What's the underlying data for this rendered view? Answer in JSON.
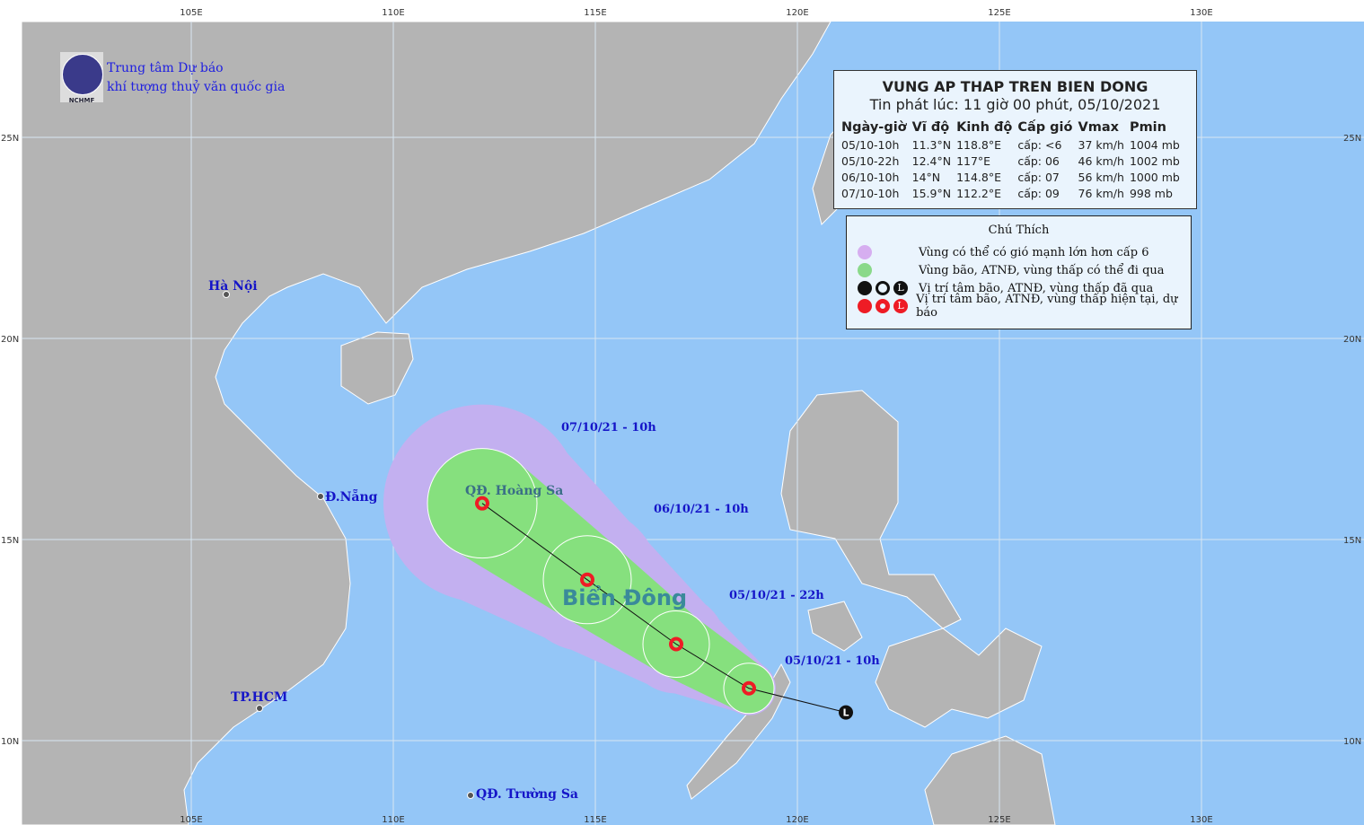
{
  "header": {
    "org_line1": "Trung tâm Dự báo",
    "org_line2": "khí tượng thuỷ văn quốc gia",
    "logo_text": "NCHMF"
  },
  "axes": {
    "lon_ticks": [
      "105E",
      "110E",
      "115E",
      "120E",
      "125E",
      "130E"
    ],
    "lat_ticks": [
      "25N",
      "20N",
      "15N",
      "10N"
    ]
  },
  "info": {
    "title": "VUNG AP THAP TREN BIEN DONG",
    "issued": "Tin phát lúc: 11 giờ 00 phút, 05/10/2021",
    "columns": [
      "Ngày-giờ",
      "Vĩ độ",
      "Kinh độ",
      "Cấp gió",
      "Vmax",
      "Pmin"
    ],
    "rows": [
      [
        "05/10-10h",
        "11.3°N",
        "118.8°E",
        "cấp: <6",
        "37 km/h",
        "1004 mb"
      ],
      [
        "05/10-22h",
        "12.4°N",
        "117°E",
        "cấp: 06",
        "46 km/h",
        "1002 mb"
      ],
      [
        "06/10-10h",
        "14°N",
        "114.8°E",
        "cấp: 07",
        "56 km/h",
        "1000 mb"
      ],
      [
        "07/10-10h",
        "15.9°N",
        "112.2°E",
        "cấp: 09",
        "76 km/h",
        "998 mb"
      ]
    ]
  },
  "legend": {
    "title": "Chú Thích",
    "items": [
      "Vùng có thể có gió mạnh lớn hơn cấp 6",
      "Vùng bão, ATNĐ, vùng thấp có thể đi qua",
      "Vị trí tâm bão, ATNĐ, vùng thấp đã qua",
      "Vị trí tâm bão, ATNĐ, vùng thấp hiện tại, dự báo"
    ]
  },
  "places": {
    "hanoi": "Hà Nội",
    "danang": "Đ.Nẵng",
    "hcm": "TP.HCM",
    "hoangsa": "QĐ. Hoàng Sa",
    "truongsa": "QĐ. Trường Sa",
    "biendong": "Biển Đông"
  },
  "track": {
    "past": {
      "lon": 121.2,
      "lat": 10.7,
      "symbol": "L"
    },
    "forecast": [
      {
        "label": "05/10/21 - 10h",
        "lon": 118.8,
        "lat": 11.3
      },
      {
        "label": "05/10/21 - 22h",
        "lon": 117,
        "lat": 12.4
      },
      {
        "label": "06/10/21 - 10h",
        "lon": 114.8,
        "lat": 14
      },
      {
        "label": "07/10/21 - 10h",
        "lon": 112.2,
        "lat": 15.9
      }
    ]
  },
  "colors": {
    "sea": "#94c6f7",
    "land": "#b4b4b4",
    "purple": "#c3b0f0",
    "green": "#86e07e",
    "red": "#ee1c25"
  }
}
